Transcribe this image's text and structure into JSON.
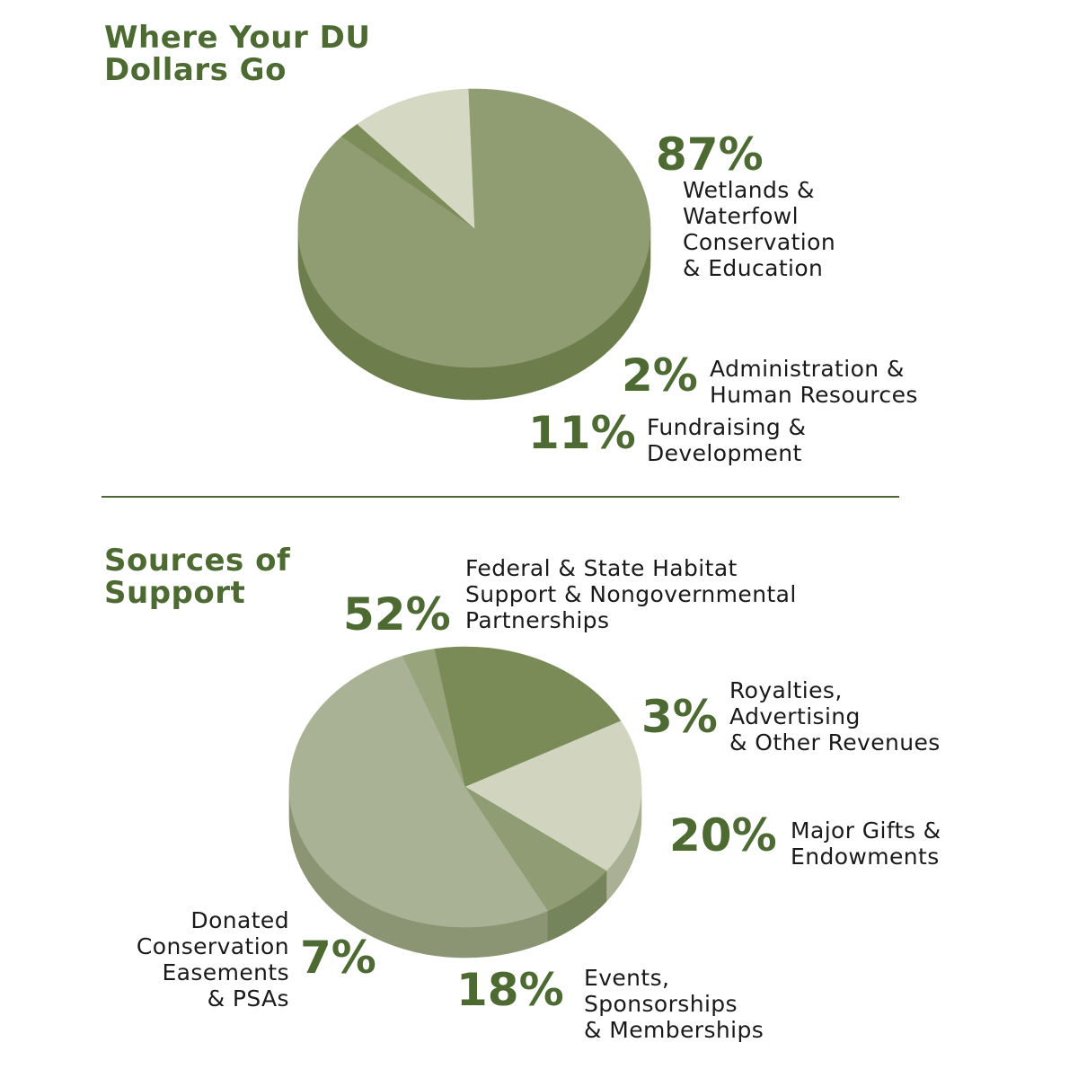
{
  "chart_data": [
    {
      "type": "pie",
      "title": "Where Your DU\nDollars Go",
      "slices": [
        {
          "label": "Wetlands &\nWaterfowl\nConservation\n& Education",
          "value": 87,
          "display": "87%",
          "color": "#909c72",
          "side": "#6d7e4c"
        },
        {
          "label": "Administration &\nHuman Resources",
          "value": 2,
          "display": "2%",
          "color": "#7c8d5a",
          "side": "#5f7040"
        },
        {
          "label": "Fundraising &\nDevelopment",
          "value": 11,
          "display": "11%",
          "color": "#d5d8c3",
          "side": "#a9ae90"
        }
      ]
    },
    {
      "type": "pie",
      "title": "Sources of\nSupport",
      "slices": [
        {
          "label": "Federal & State Habitat\nSupport & Nongovernmental\nPartnerships",
          "value": 52,
          "display": "52%",
          "color": "#aab295",
          "side": "#8b9574"
        },
        {
          "label": "Royalties,\nAdvertising\n& Other Revenues",
          "value": 3,
          "display": "3%",
          "color": "#98a47c",
          "side": "#7e8a60"
        },
        {
          "label": "Major Gifts &\nEndowments",
          "value": 20,
          "display": "20%",
          "color": "#7b8b57",
          "side": "#5e6e3e"
        },
        {
          "label": "Events,\nSponsorships\n& Memberships",
          "value": 18,
          "display": "18%",
          "color": "#d1d5bf",
          "side": "#aab094"
        },
        {
          "label": "Donated\nConservation\nEasements\n& PSAs",
          "value": 7,
          "display": "7%",
          "color": "#909d74",
          "side": "#75845a"
        }
      ]
    }
  ]
}
